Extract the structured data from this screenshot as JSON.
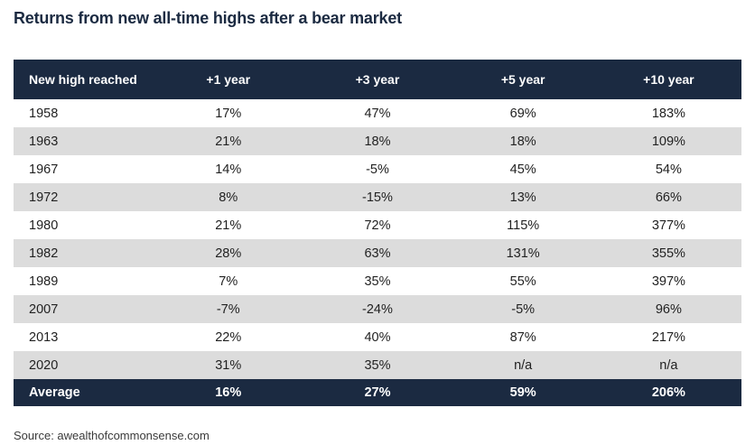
{
  "title": "Returns from new all-time highs after a bear market",
  "source_label": "Source: awealthofcommonsense.com",
  "colors": {
    "navy": "#1b2a41",
    "row_alt": "#dcdcdc",
    "row_text": "#222222",
    "source_text": "#3a3a3a",
    "page_bg": "#ffffff",
    "header_text": "#ffffff"
  },
  "chart_data": {
    "type": "table",
    "title": "Returns from new all-time highs after a bear market",
    "columns": [
      "New high reached",
      "+1 year",
      "+3 year",
      "+5 year",
      "+10 year"
    ],
    "rows": [
      [
        "1958",
        "17%",
        "47%",
        "69%",
        "183%"
      ],
      [
        "1963",
        "21%",
        "18%",
        "18%",
        "109%"
      ],
      [
        "1967",
        "14%",
        "-5%",
        "45%",
        "54%"
      ],
      [
        "1972",
        "8%",
        "-15%",
        "13%",
        "66%"
      ],
      [
        "1980",
        "21%",
        "72%",
        "115%",
        "377%"
      ],
      [
        "1982",
        "28%",
        "63%",
        "131%",
        "355%"
      ],
      [
        "1989",
        "7%",
        "35%",
        "55%",
        "397%"
      ],
      [
        "2007",
        "-7%",
        "-24%",
        "-5%",
        "96%"
      ],
      [
        "2013",
        "22%",
        "40%",
        "87%",
        "217%"
      ],
      [
        "2020",
        "31%",
        "35%",
        "n/a",
        "n/a"
      ]
    ],
    "footer": [
      "Average",
      "16%",
      "27%",
      "59%",
      "206%"
    ],
    "layout": {
      "zebra_striping": true,
      "alternate_rows_shaded": [
        "1963",
        "1972",
        "1982",
        "2007",
        "2020"
      ],
      "header_style": "navy background, white bold text",
      "footer_style": "navy background, white bold text"
    },
    "source": "awealthofcommonsense.com"
  }
}
